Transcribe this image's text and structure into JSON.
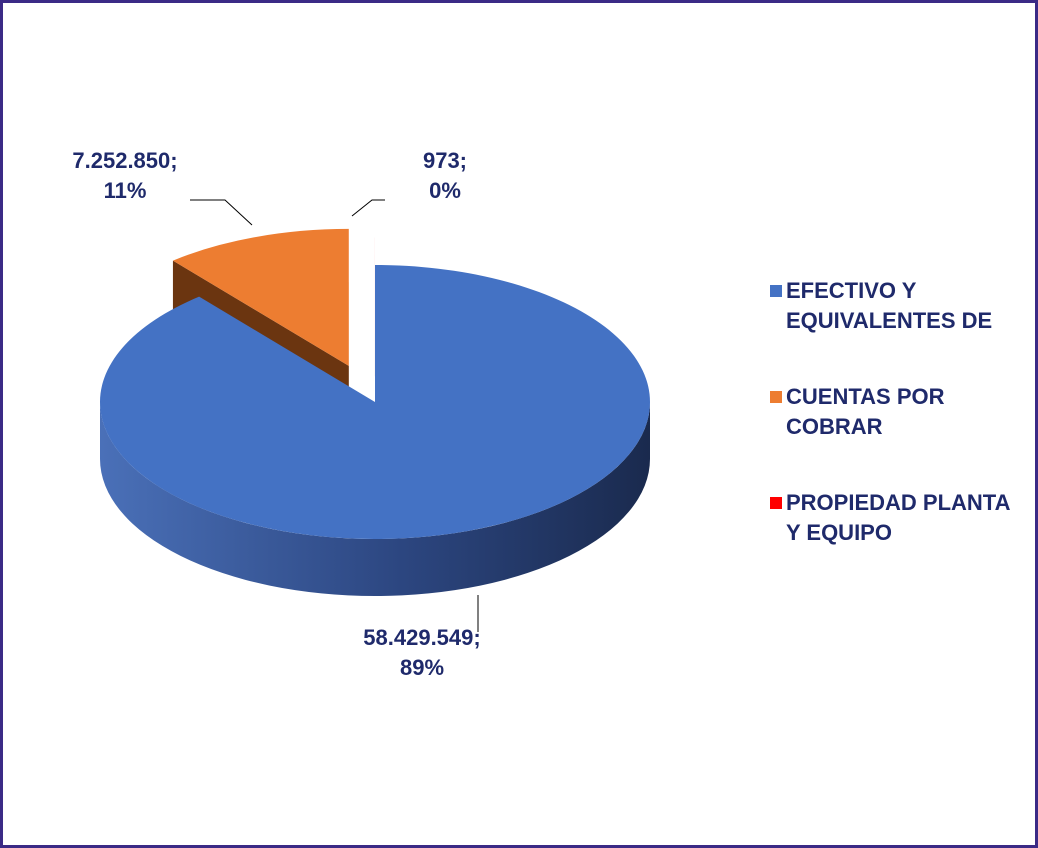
{
  "chart_data": {
    "type": "pie",
    "categories": [
      "EFECTIVO Y EQUIVALENTES DE",
      "CUENTAS POR COBRAR",
      "PROPIEDAD PLANTA Y EQUIPO"
    ],
    "values": [
      58429549,
      7252850,
      973
    ],
    "value_labels": [
      "58.429.549; 89%",
      "7.252.850; 11%",
      "973; 0%"
    ],
    "colors": [
      "#4472c4",
      "#ed7d31",
      "#ff0000"
    ],
    "legend": "right"
  }
}
